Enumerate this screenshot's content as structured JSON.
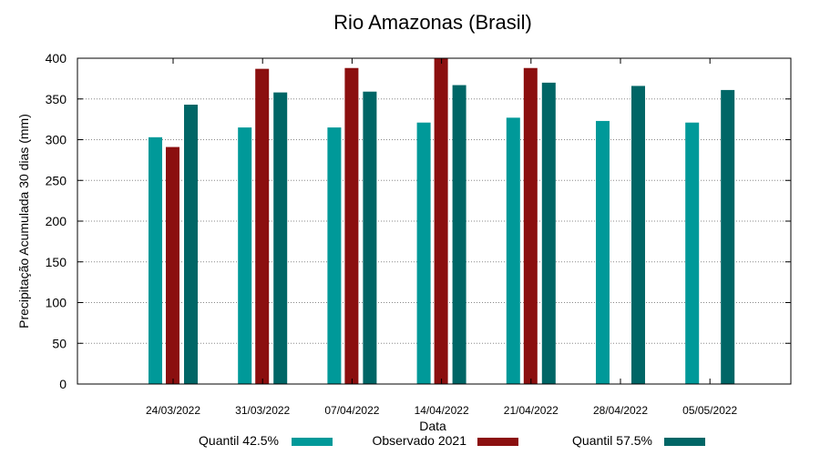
{
  "chart_data": {
    "type": "bar",
    "title": "Rio Amazonas (Brasil)",
    "xlabel": "Data",
    "ylabel": "Precipitação Acumulada 30 dias (mm)",
    "ylim": [
      0,
      400
    ],
    "yticks": [
      0,
      50,
      100,
      150,
      200,
      250,
      300,
      350,
      400
    ],
    "grid": true,
    "legend_position": "bottom",
    "categories": [
      "24/03/2022",
      "31/03/2022",
      "07/04/2022",
      "14/04/2022",
      "21/04/2022",
      "28/04/2022",
      "05/05/2022"
    ],
    "series": [
      {
        "name": "Quantil 42.5%",
        "color": "#009999",
        "values": [
          303,
          315,
          315,
          321,
          327,
          323,
          321
        ]
      },
      {
        "name": "Observado 2021",
        "color": "#8b0f0f",
        "values": [
          291,
          387,
          388,
          400,
          388,
          null,
          null
        ]
      },
      {
        "name": "Quantil 57.5%",
        "color": "#006666",
        "values": [
          343,
          358,
          359,
          367,
          370,
          366,
          361
        ]
      }
    ]
  }
}
